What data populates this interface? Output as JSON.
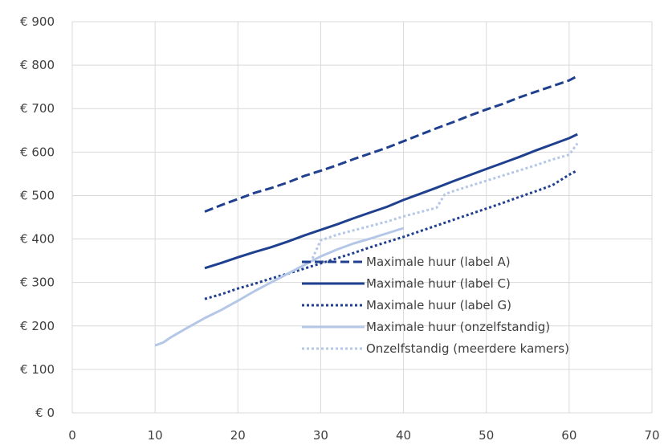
{
  "chart_data": {
    "type": "line",
    "title": "",
    "xlabel": "",
    "ylabel": "",
    "xlim": [
      0,
      70
    ],
    "ylim": [
      0,
      900
    ],
    "x_ticks": [
      0,
      10,
      20,
      30,
      40,
      50,
      60,
      70
    ],
    "y_ticks": [
      0,
      100,
      200,
      300,
      400,
      500,
      600,
      700,
      800,
      900
    ],
    "y_tick_labels": [
      "€ 0",
      "€ 100",
      "€ 200",
      "€ 300",
      "€ 400",
      "€ 500",
      "€ 600",
      "€ 700",
      "€ 800",
      "€ 900"
    ],
    "grid": true,
    "legend_position": "inside-lower-right",
    "series": [
      {
        "name": "Maximale huur (label A)",
        "color": "#1f3f8f",
        "style": "dashed",
        "x": [
          16,
          18,
          20,
          22,
          24,
          26,
          28,
          30,
          32,
          34,
          36,
          38,
          40,
          42,
          44,
          46,
          48,
          50,
          52,
          54,
          56,
          58,
          60,
          61
        ],
        "y": [
          463,
          478,
          492,
          506,
          517,
          530,
          545,
          557,
          570,
          584,
          597,
          610,
          625,
          640,
          655,
          669,
          684,
          698,
          711,
          726,
          739,
          752,
          765,
          775
        ]
      },
      {
        "name": "Maximale huur (label C)",
        "color": "#1f3f8f",
        "style": "solid",
        "x": [
          16,
          18,
          20,
          22,
          24,
          26,
          28,
          30,
          32,
          34,
          36,
          38,
          40,
          42,
          44,
          46,
          48,
          50,
          52,
          54,
          56,
          58,
          60,
          61
        ],
        "y": [
          333,
          345,
          358,
          370,
          381,
          394,
          408,
          421,
          434,
          448,
          461,
          474,
          490,
          504,
          518,
          533,
          547,
          561,
          575,
          589,
          604,
          618,
          632,
          641
        ]
      },
      {
        "name": "Maximale huur (label G)",
        "color": "#1f3f8f",
        "style": "dotted",
        "x": [
          16,
          18,
          20,
          22,
          24,
          26,
          28,
          30,
          32,
          34,
          36,
          38,
          40,
          42,
          44,
          46,
          48,
          50,
          52,
          54,
          56,
          58,
          60,
          61
        ],
        "y": [
          262,
          273,
          286,
          297,
          309,
          320,
          332,
          344,
          356,
          368,
          381,
          393,
          405,
          418,
          431,
          444,
          457,
          470,
          483,
          497,
          510,
          524,
          548,
          558
        ]
      },
      {
        "name": "Maximale huur (onzelfstandig)",
        "color": "#b4c7e7",
        "style": "solid",
        "x": [
          10,
          11,
          12,
          14,
          16,
          18,
          20,
          22,
          24,
          26,
          28,
          30,
          32,
          34,
          36,
          38,
          40
        ],
        "y": [
          155,
          162,
          175,
          197,
          218,
          237,
          258,
          280,
          300,
          320,
          340,
          360,
          376,
          390,
          401,
          413,
          425
        ]
      },
      {
        "name": "Onzelfstandig (meerdere kamers)",
        "color": "#b4c7e7",
        "style": "dotted",
        "x": [
          29,
          30,
          32,
          34,
          36,
          38,
          40,
          42,
          44,
          45,
          46,
          48,
          50,
          52,
          54,
          56,
          58,
          60,
          61
        ],
        "y": [
          355,
          397,
          410,
          420,
          430,
          440,
          452,
          462,
          472,
          503,
          510,
          522,
          534,
          546,
          558,
          570,
          583,
          594,
          620
        ]
      }
    ]
  }
}
